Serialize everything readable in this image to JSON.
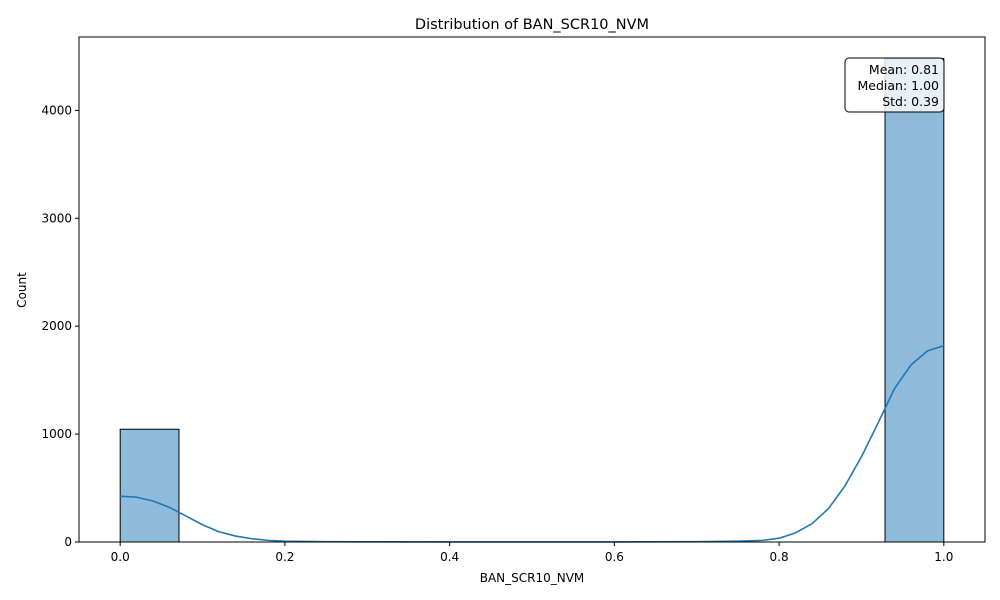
{
  "chart_data": {
    "type": "bar",
    "title": "Distribution of BAN_SCR10_NVM",
    "xlabel": "BAN_SCR10_NVM",
    "ylabel": "Count",
    "xlim": [
      -0.05,
      1.05
    ],
    "ylim": [
      0,
      4680
    ],
    "x_ticks": [
      0.0,
      0.2,
      0.4,
      0.6,
      0.8,
      1.0
    ],
    "x_tick_labels": [
      "0.0",
      "0.2",
      "0.4",
      "0.6",
      "0.8",
      "1.0"
    ],
    "y_ticks": [
      0,
      1000,
      2000,
      3000,
      4000
    ],
    "y_tick_labels": [
      "0",
      "1000",
      "2000",
      "3000",
      "4000"
    ],
    "bins": [
      {
        "x0": 0.0,
        "x1": 0.0714,
        "count": 1045
      },
      {
        "x0": 0.9286,
        "x1": 1.0,
        "count": 4480
      }
    ],
    "kde": {
      "x": [
        0.0,
        0.02,
        0.04,
        0.06,
        0.08,
        0.1,
        0.12,
        0.14,
        0.16,
        0.18,
        0.2,
        0.25,
        0.3,
        0.4,
        0.5,
        0.6,
        0.7,
        0.75,
        0.78,
        0.8,
        0.82,
        0.84,
        0.86,
        0.88,
        0.9,
        0.92,
        0.94,
        0.96,
        0.98,
        1.0
      ],
      "y": [
        425,
        415,
        380,
        320,
        240,
        160,
        95,
        55,
        30,
        15,
        8,
        3,
        2,
        1,
        1,
        1,
        3,
        8,
        15,
        35,
        85,
        170,
        310,
        520,
        790,
        1100,
        1420,
        1640,
        1770,
        1820
      ]
    },
    "stats_box": {
      "lines": [
        "Mean: 0.81",
        "Median: 1.00",
        "Std: 0.39"
      ],
      "position": "top-right"
    },
    "colors": {
      "bar_fill": "#8fbbdb",
      "bar_edge": "#000000",
      "kde_line": "#1f77b4"
    },
    "grid": false,
    "legend": "none"
  }
}
